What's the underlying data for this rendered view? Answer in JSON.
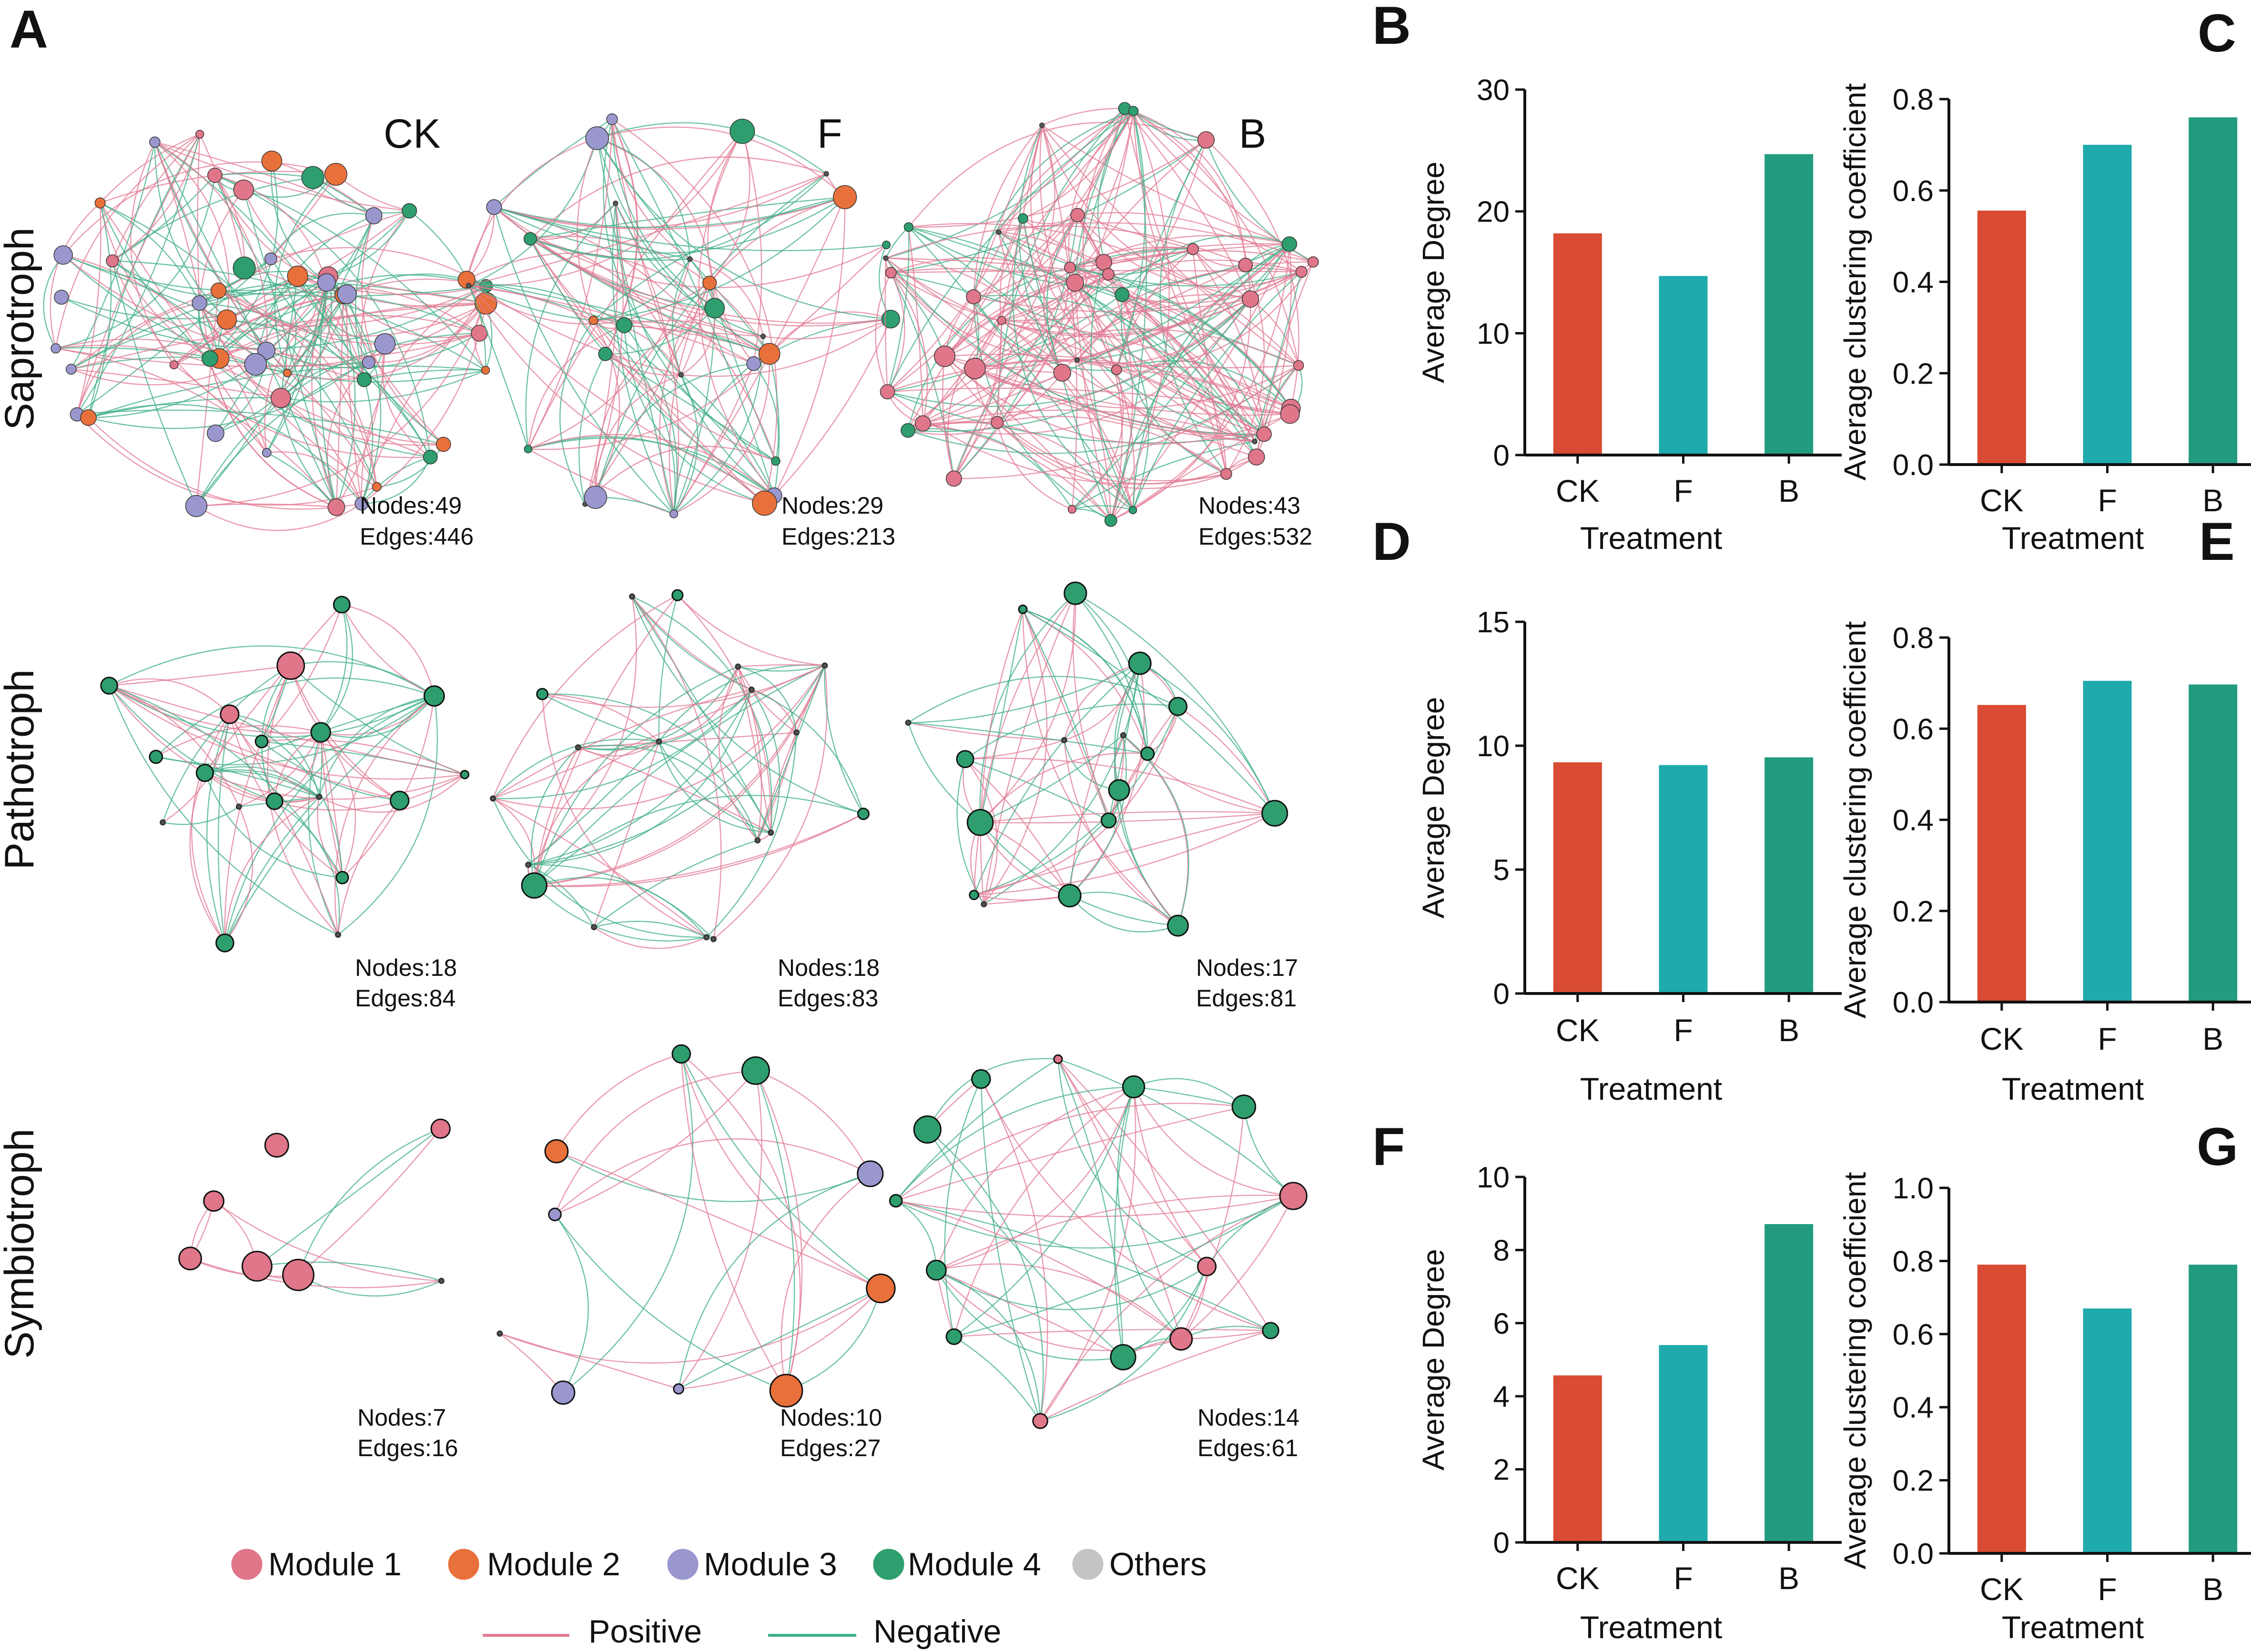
{
  "panel_letters": [
    "A",
    "B",
    "C",
    "D",
    "E",
    "F",
    "G"
  ],
  "networks": {
    "treatments": [
      "CK",
      "F",
      "B"
    ],
    "rows": [
      {
        "label": "Saprotroph",
        "stats": [
          {
            "nodes": "Nodes:49",
            "edges": "Edges:446"
          },
          {
            "nodes": "Nodes:29",
            "edges": "Edges:213"
          },
          {
            "nodes": "Nodes:43",
            "edges": "Edges:532"
          }
        ]
      },
      {
        "label": "Pathotroph",
        "stats": [
          {
            "nodes": "Nodes:18",
            "edges": "Edges:84"
          },
          {
            "nodes": "Nodes:18",
            "edges": "Edges:83"
          },
          {
            "nodes": "Nodes:17",
            "edges": "Edges:81"
          }
        ]
      },
      {
        "label": "Symbiotroph",
        "stats": [
          {
            "nodes": "Nodes:7",
            "edges": "Edges:16"
          },
          {
            "nodes": "Nodes:10",
            "edges": "Edges:27"
          },
          {
            "nodes": "Nodes:14",
            "edges": "Edges:61"
          }
        ]
      }
    ],
    "module_colors": {
      "Module 1": "#E07689",
      "Module 2": "#E8703A",
      "Module 3": "#9A97CE",
      "Module 4": "#2E9E6E",
      "Others": "#C4C4C4"
    },
    "edge_colors": {
      "positive": "#E27A93",
      "negative": "#3FAF87"
    }
  },
  "legend": {
    "modules": [
      {
        "label": "Module 1",
        "color": "#E07689"
      },
      {
        "label": "Module 2",
        "color": "#E8703A"
      },
      {
        "label": "Module 3",
        "color": "#9A97CE"
      },
      {
        "label": "Module 4",
        "color": "#2E9E6E"
      },
      {
        "label": "Others",
        "color": "#C4C4C4"
      }
    ],
    "edges": [
      {
        "label": "Positive",
        "color": "#E27A93"
      },
      {
        "label": "Negative",
        "color": "#3FAF87"
      }
    ]
  },
  "bar_colors": [
    "#D94B32",
    "#1FAAAC",
    "#239B80"
  ],
  "chart_data": [
    {
      "panel": "B",
      "type": "bar",
      "categories": [
        "CK",
        "F",
        "B"
      ],
      "values": [
        18.2,
        14.7,
        24.7
      ],
      "xlabel": "Treatment",
      "ylabel": "Average Degree",
      "ylim": [
        0,
        30
      ],
      "ticks": [
        0,
        10,
        20,
        30
      ],
      "tick_labels": [
        "0",
        "10",
        "20",
        "30"
      ]
    },
    {
      "panel": "C",
      "type": "bar",
      "categories": [
        "CK",
        "F",
        "B"
      ],
      "values": [
        0.556,
        0.7,
        0.76
      ],
      "xlabel": "Treatment",
      "ylabel": "Average clustering coefficient",
      "ylim": [
        0,
        0.8
      ],
      "ticks": [
        0,
        0.2,
        0.4,
        0.6,
        0.8
      ],
      "tick_labels": [
        "0.0",
        "0.2",
        "0.4",
        "0.6",
        "0.8"
      ]
    },
    {
      "panel": "D",
      "type": "bar",
      "categories": [
        "CK",
        "F",
        "B"
      ],
      "values": [
        9.33,
        9.22,
        9.53
      ],
      "xlabel": "Treatment",
      "ylabel": "Average Degree",
      "ylim": [
        0,
        15
      ],
      "ticks": [
        0,
        5,
        10,
        15
      ],
      "tick_labels": [
        "0",
        "5",
        "10",
        "15"
      ]
    },
    {
      "panel": "E",
      "type": "bar",
      "categories": [
        "CK",
        "F",
        "B"
      ],
      "values": [
        0.652,
        0.705,
        0.697
      ],
      "xlabel": "Treatment",
      "ylabel": "Average clustering coefficient",
      "ylim": [
        0,
        0.8
      ],
      "ticks": [
        0,
        0.2,
        0.4,
        0.6,
        0.8
      ],
      "tick_labels": [
        "0.0",
        "0.2",
        "0.4",
        "0.6",
        "0.8"
      ]
    },
    {
      "panel": "F",
      "type": "bar",
      "categories": [
        "CK",
        "F",
        "B"
      ],
      "values": [
        4.57,
        5.4,
        8.71
      ],
      "xlabel": "Treatment",
      "ylabel": "Average Degree",
      "ylim": [
        0,
        10
      ],
      "ticks": [
        0,
        2,
        4,
        6,
        8,
        10
      ],
      "tick_labels": [
        "0",
        "2",
        "4",
        "6",
        "8",
        "10"
      ]
    },
    {
      "panel": "G",
      "type": "bar",
      "categories": [
        "CK",
        "F",
        "B"
      ],
      "values": [
        0.79,
        0.67,
        0.79
      ],
      "xlabel": "Treatment",
      "ylabel": "Average clustering coefficient",
      "ylim": [
        0,
        1.0
      ],
      "ticks": [
        0,
        0.2,
        0.4,
        0.6,
        0.8,
        1.0
      ],
      "tick_labels": [
        "0.0",
        "0.2",
        "0.4",
        "0.6",
        "0.8",
        "1.0"
      ]
    }
  ]
}
